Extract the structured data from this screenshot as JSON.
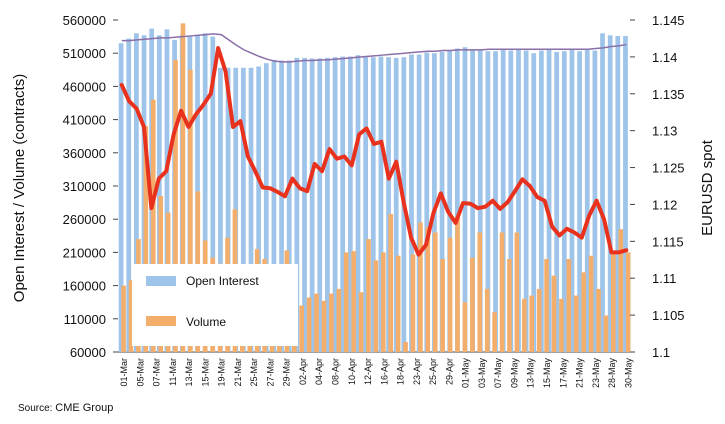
{
  "chart_data": {
    "type": "bar+line",
    "y_left_label": "Open Interest / Volume (contracts)",
    "y_right_label": "EURUSD spot",
    "y_left_range": [
      60000,
      560000
    ],
    "y_left_ticks": [
      60000,
      110000,
      160000,
      210000,
      260000,
      310000,
      360000,
      410000,
      460000,
      510000,
      560000
    ],
    "y_right_range": [
      1.1,
      1.145
    ],
    "y_right_ticks": [
      "1.1",
      "1.105",
      "1.11",
      "1.115",
      "1.12",
      "1.125",
      "1.13",
      "1.135",
      "1.14",
      "1.145"
    ],
    "x_tick_labels": [
      "01-Mar",
      "05-Mar",
      "07-Mar",
      "11-Mar",
      "13-Mar",
      "15-Mar",
      "19-Mar",
      "21-Mar",
      "25-Mar",
      "27-Mar",
      "29-Mar",
      "02-Apr",
      "04-Apr",
      "08-Apr",
      "10-Apr",
      "12-Apr",
      "16-Apr",
      "18-Apr",
      "23-Apr",
      "25-Apr",
      "29-Apr",
      "01-May",
      "03-May",
      "07-May",
      "09-May",
      "13-May",
      "15-May",
      "17-May",
      "21-May",
      "23-May",
      "28-May",
      "30-May"
    ],
    "legend": [
      "Open Interest",
      "Volume"
    ],
    "series": [
      {
        "name": "Open Interest",
        "type": "bar",
        "color": "#9ec4ea",
        "values": [
          525000,
          532000,
          540000,
          537000,
          547000,
          537000,
          546000,
          530000,
          538000,
          535000,
          537000,
          540000,
          535000,
          488000,
          488000,
          488000,
          488000,
          488000,
          490000,
          495000,
          500000,
          499000,
          499000,
          503000,
          503000,
          502000,
          502000,
          503000,
          504000,
          505000,
          505000,
          507000,
          506000,
          504000,
          505000,
          504000,
          503000,
          504000,
          508000,
          508000,
          511000,
          510000,
          512000,
          514000,
          517000,
          519000,
          514000,
          516000,
          513000,
          513000,
          516000,
          514000,
          516000,
          514000,
          510000,
          514000,
          515000,
          512000,
          513000,
          516000,
          513000,
          515000,
          514000,
          540000,
          537000,
          536000,
          536000
        ]
      },
      {
        "name": "Volume",
        "type": "bar",
        "color": "#f3ae6c",
        "values": [
          160000,
          168000,
          230000,
          400000,
          440000,
          295000,
          270000,
          500000,
          555000,
          485000,
          302000,
          228000,
          202000,
          193000,
          232000,
          275000,
          160000,
          158000,
          215000,
          200000,
          190000,
          190000,
          213000,
          185000,
          130000,
          142000,
          148000,
          137000,
          148000,
          155000,
          210000,
          212000,
          150000,
          230000,
          198000,
          210000,
          268000,
          205000,
          75000,
          207000,
          255000,
          248000,
          240000,
          200000,
          232000,
          265000,
          135000,
          202000,
          240000,
          155000,
          120000,
          240000,
          200000,
          240000,
          140000,
          145000,
          155000,
          200000,
          175000,
          140000,
          200000,
          145000,
          180000,
          205000,
          155000,
          115000,
          210000,
          245000,
          210000
        ]
      },
      {
        "name": "Open Interest MA",
        "type": "line",
        "color": "#8a6fa8",
        "values": [
          529000,
          529000,
          530000,
          531000,
          532000,
          533000,
          533000,
          534000,
          535000,
          536000,
          537000,
          538000,
          539000,
          538000,
          530000,
          522000,
          515000,
          510000,
          505000,
          501000,
          498000,
          497000,
          497000,
          498000,
          499000,
          499000,
          500000,
          500000,
          501000,
          502000,
          503000,
          504000,
          505000,
          506000,
          507000,
          508000,
          509000,
          510000,
          511000,
          512000,
          513000,
          513000,
          514000,
          514000,
          515000,
          515000,
          515000,
          515000,
          516000,
          516000,
          516000,
          516000,
          516000,
          516000,
          516000,
          516000,
          516000,
          516000,
          516000,
          516000,
          516000,
          516000,
          517000,
          518000,
          520000,
          521000,
          523000
        ]
      },
      {
        "name": "EURUSD spot",
        "type": "line",
        "color": "#e8321e",
        "axis": "right",
        "values": [
          1.1362,
          1.134,
          1.133,
          1.1305,
          1.1195,
          1.1235,
          1.1245,
          1.1295,
          1.1327,
          1.1305,
          1.1322,
          1.1335,
          1.135,
          1.1412,
          1.138,
          1.1305,
          1.1313,
          1.1265,
          1.1245,
          1.1223,
          1.1222,
          1.1217,
          1.1211,
          1.1235,
          1.1222,
          1.1218,
          1.1255,
          1.1245,
          1.1275,
          1.1262,
          1.1265,
          1.1253,
          1.1295,
          1.1303,
          1.1282,
          1.1285,
          1.1235,
          1.1258,
          1.1203,
          1.1155,
          1.1132,
          1.1145,
          1.1188,
          1.1215,
          1.119,
          1.1175,
          1.1202,
          1.1201,
          1.1195,
          1.1197,
          1.1205,
          1.1194,
          1.1203,
          1.1218,
          1.1234,
          1.1225,
          1.121,
          1.1205,
          1.117,
          1.1158,
          1.1167,
          1.1162,
          1.1155,
          1.1185,
          1.1205,
          1.118,
          1.1135,
          1.1135,
          1.1138
        ]
      }
    ]
  },
  "source": {
    "prefix": "Source:",
    "name": "CME Group"
  }
}
